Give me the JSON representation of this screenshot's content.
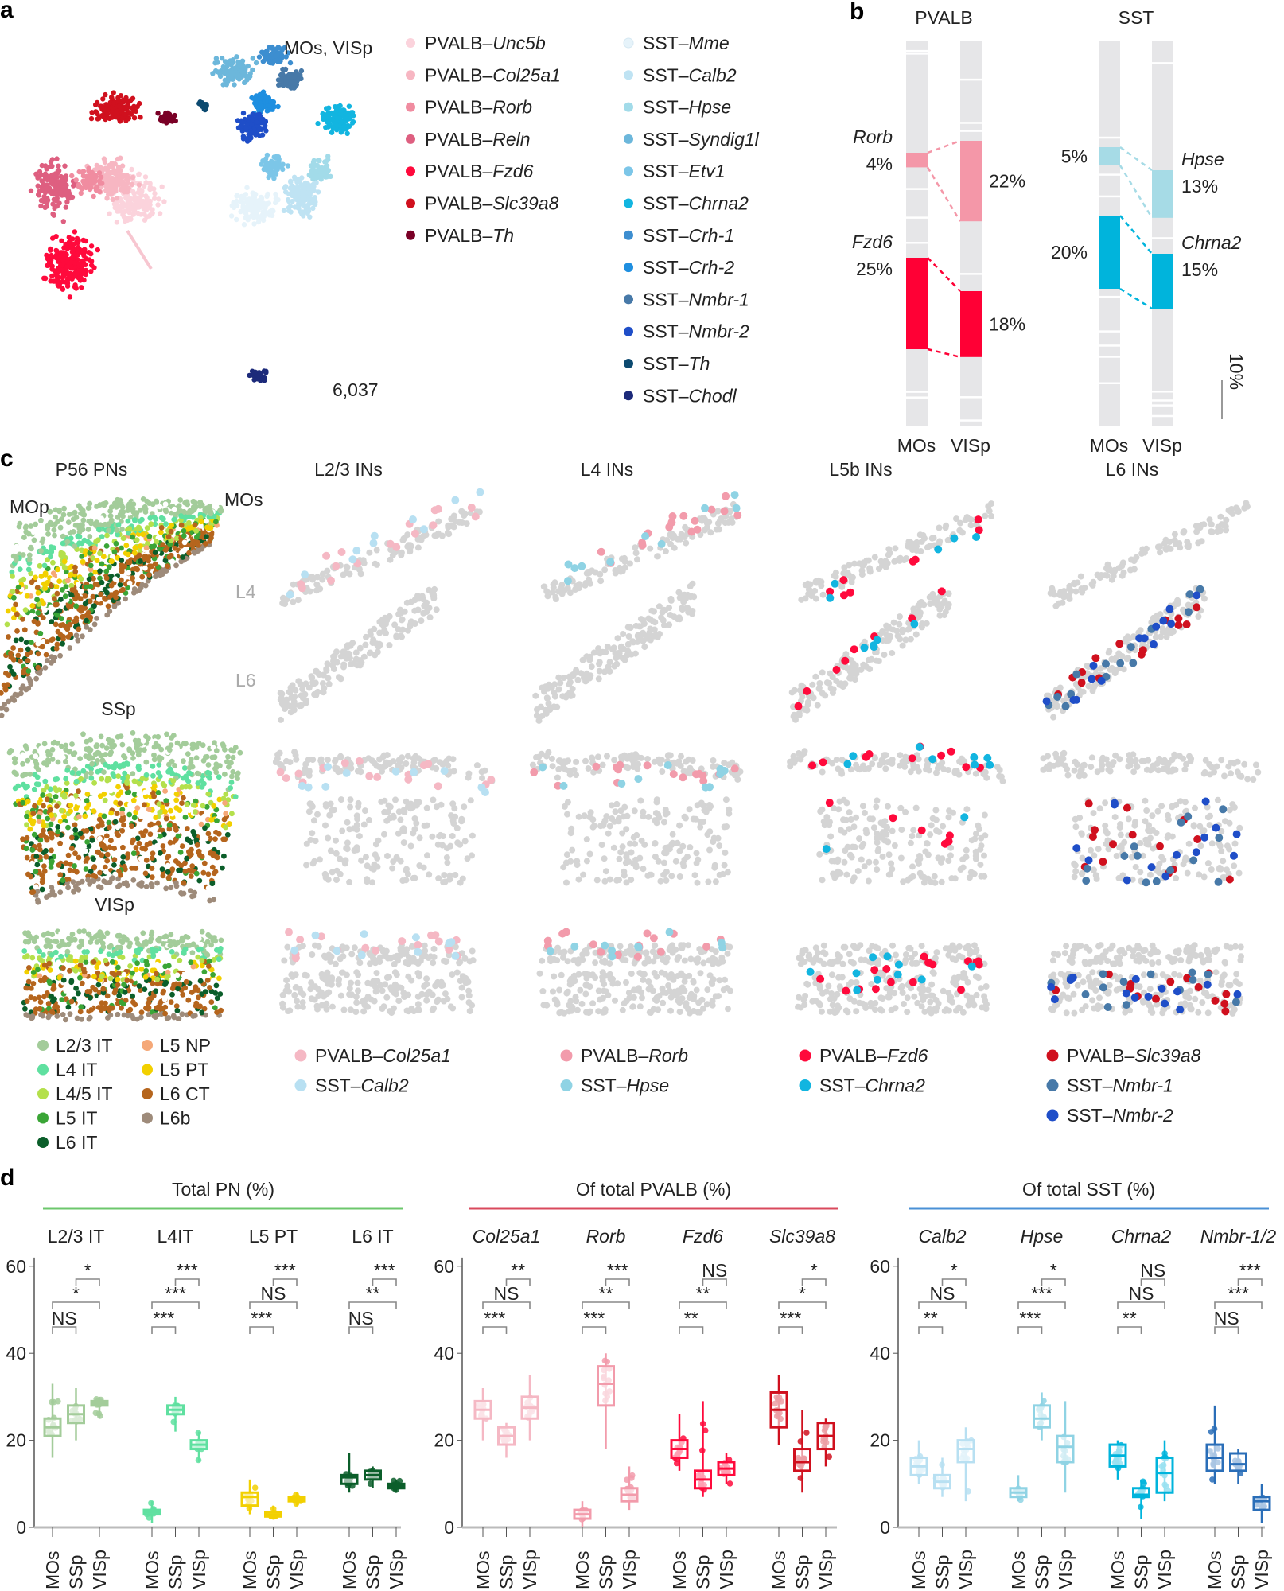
{
  "panel_labels": {
    "a": "a",
    "b": "b",
    "c": "c",
    "d": "d"
  },
  "panel_a": {
    "region_label": "MOs, VISp",
    "cell_count": "6,037",
    "pvalb_types": [
      {
        "prefix": "PVALB–",
        "name": "Unc5b",
        "color": "#fbd3dc"
      },
      {
        "prefix": "PVALB–",
        "name": "Col25a1",
        "color": "#f7b6c2"
      },
      {
        "prefix": "PVALB–",
        "name": "Rorb",
        "color": "#f08ca0"
      },
      {
        "prefix": "PVALB–",
        "name": "Reln",
        "color": "#de5f80"
      },
      {
        "prefix": "PVALB–",
        "name": "Fzd6",
        "color": "#ff0a3c"
      },
      {
        "prefix": "PVALB–",
        "name": "Slc39a8",
        "color": "#d0101e"
      },
      {
        "prefix": "PVALB–",
        "name": "Th",
        "color": "#7a0026"
      }
    ],
    "sst_types": [
      {
        "prefix": "SST–",
        "name": "Mme",
        "color": "#e6f3fa"
      },
      {
        "prefix": "SST–",
        "name": "Calb2",
        "color": "#bfe3f3"
      },
      {
        "prefix": "SST–",
        "name": "Hpse",
        "color": "#a2dbe9"
      },
      {
        "prefix": "SST–",
        "name": "Syndig1l",
        "color": "#6cb7db"
      },
      {
        "prefix": "SST–",
        "name": "Etv1",
        "color": "#7cc6e8"
      },
      {
        "prefix": "SST–",
        "name": "Chrna2",
        "color": "#12b5e0"
      },
      {
        "prefix": "SST–",
        "name": "Crh-1",
        "color": "#3d8ed0"
      },
      {
        "prefix": "SST–",
        "name": "Crh-2",
        "color": "#1f8fe0"
      },
      {
        "prefix": "SST–",
        "name": "Nmbr-1",
        "color": "#4779a8"
      },
      {
        "prefix": "SST–",
        "name": "Nmbr-2",
        "color": "#1f4ec8"
      },
      {
        "prefix": "SST–",
        "name": "Th",
        "color": "#0c4a70"
      },
      {
        "prefix": "SST–",
        "name": "Chodl",
        "color": "#1c2a7a"
      }
    ]
  },
  "panel_c": {
    "column_titles": [
      "P56 PNs",
      "L2/3 INs",
      "L4 INs",
      "L5b INs",
      "L6 INs"
    ],
    "region_labels": {
      "mop": "MOp",
      "mos": "MOs",
      "ssp": "SSp",
      "visp": "VISp"
    },
    "layer_markers": {
      "l4": "L4",
      "l6": "L6"
    },
    "pn_legend": [
      {
        "name": "L2/3 IT",
        "color": "#a3cc9a"
      },
      {
        "name": "L4 IT",
        "color": "#5fe0a0"
      },
      {
        "name": "L4/5 IT",
        "color": "#b4e04c"
      },
      {
        "name": "L5 IT",
        "color": "#3aa536"
      },
      {
        "name": "L6 IT",
        "color": "#0b5e2a"
      },
      {
        "name": "L5 NP",
        "color": "#f5a878"
      },
      {
        "name": "L5 PT",
        "color": "#f2d000"
      },
      {
        "name": "L6 CT",
        "color": "#b5651d"
      },
      {
        "name": "L6b",
        "color": "#9e8b7a"
      }
    ],
    "in_legend": [
      [
        {
          "prefix": "PVALB–",
          "name": "Col25a1",
          "color": "#f5b8c4"
        },
        {
          "prefix": "SST–",
          "name": "Calb2",
          "color": "#b8e0f2"
        }
      ],
      [
        {
          "prefix": "PVALB–",
          "name": "Rorb",
          "color": "#f29bab"
        },
        {
          "prefix": "SST–",
          "name": "Hpse",
          "color": "#8fd3e4"
        }
      ],
      [
        {
          "prefix": "PVALB–",
          "name": "Fzd6",
          "color": "#ff0a3c"
        },
        {
          "prefix": "SST–",
          "name": "Chrna2",
          "color": "#12b5e0"
        }
      ],
      [
        {
          "prefix": "PVALB–",
          "name": "Slc39a8",
          "color": "#d0101e"
        },
        {
          "prefix": "SST–",
          "name": "Nmbr-1",
          "color": "#4779a8"
        },
        {
          "prefix": "SST–",
          "name": "Nmbr-2",
          "color": "#1f4ec8"
        }
      ]
    ]
  },
  "chart_data": [
    {
      "type": "bar",
      "panel": "b",
      "stacked": true,
      "categories": [
        "MOs",
        "VISp"
      ],
      "scale_bar": "10%",
      "groups": [
        {
          "title": "PVALB",
          "highlighted": [
            {
              "name": "Rorb",
              "values": [
                4,
                22
              ],
              "labels": [
                "4%",
                "22%"
              ],
              "color": "#f497a8"
            },
            {
              "name": "Fzd6",
              "values": [
                25,
                18
              ],
              "labels": [
                "25%",
                "18%"
              ],
              "color": "#ff0035"
            }
          ]
        },
        {
          "title": "SST",
          "highlighted": [
            {
              "name": "Hpse",
              "values": [
                5,
                13
              ],
              "labels": [
                "5%",
                "13%"
              ],
              "color": "#a6dbe6"
            },
            {
              "name": "Chrna2",
              "values": [
                20,
                15
              ],
              "labels": [
                "20%",
                "15%"
              ],
              "color": "#00b4dc"
            }
          ]
        }
      ]
    },
    {
      "type": "box",
      "panel": "d",
      "ylim": [
        0,
        60
      ],
      "yticks": [
        "0",
        "20",
        "40",
        "60"
      ],
      "categories": [
        "MOs",
        "SSp",
        "VISp"
      ],
      "panels": [
        {
          "title": "Total PN (%)",
          "line_color": "#6cc76c",
          "italic": false,
          "groups": [
            {
              "name": "L2/3 IT",
              "color": "#a3cc9a",
              "boxes": [
                {
                  "median": 23,
                  "q1": 21,
                  "q3": 25,
                  "min": 16,
                  "max": 33
                },
                {
                  "median": 26,
                  "q1": 24,
                  "q3": 28,
                  "min": 20,
                  "max": 32
                },
                {
                  "median": 28.5,
                  "q1": 28,
                  "q3": 29,
                  "min": 25,
                  "max": 30
                }
              ],
              "significance": [
                "*",
                "*",
                "NS"
              ]
            },
            {
              "name": "L4IT",
              "color": "#5fe0a0",
              "boxes": [
                {
                  "median": 3.5,
                  "q1": 3,
                  "q3": 4,
                  "min": 1,
                  "max": 6
                },
                {
                  "median": 27,
                  "q1": 26,
                  "q3": 28,
                  "min": 22,
                  "max": 30
                },
                {
                  "median": 19,
                  "q1": 18,
                  "q3": 20,
                  "min": 15,
                  "max": 22
                }
              ],
              "significance": [
                "***",
                "***",
                "***"
              ]
            },
            {
              "name": "L5 PT",
              "color": "#f2d000",
              "boxes": [
                {
                  "median": 7,
                  "q1": 5,
                  "q3": 8,
                  "min": 3,
                  "max": 11
                },
                {
                  "median": 3,
                  "q1": 2.5,
                  "q3": 3.5,
                  "min": 2,
                  "max": 5
                },
                {
                  "median": 6.5,
                  "q1": 6,
                  "q3": 7,
                  "min": 5,
                  "max": 8
                }
              ],
              "significance": [
                "***",
                "NS",
                "***"
              ]
            },
            {
              "name": "L6 IT",
              "color": "#0b5e2a",
              "boxes": [
                {
                  "median": 11.5,
                  "q1": 10,
                  "q3": 12,
                  "min": 8,
                  "max": 17
                },
                {
                  "median": 12,
                  "q1": 11,
                  "q3": 13,
                  "min": 9,
                  "max": 14
                },
                {
                  "median": 9.5,
                  "q1": 9,
                  "q3": 10,
                  "min": 8,
                  "max": 11
                }
              ],
              "significance": [
                "***",
                "**",
                "NS"
              ]
            }
          ]
        },
        {
          "title": "Of total PVALB (%)",
          "line_color": "#d9495c",
          "italic": true,
          "groups": [
            {
              "name": "Col25a1",
              "color": "#f5b8c4",
              "boxes": [
                {
                  "median": 27,
                  "q1": 25,
                  "q3": 29,
                  "min": 20,
                  "max": 32
                },
                {
                  "median": 21,
                  "q1": 19,
                  "q3": 23,
                  "min": 16,
                  "max": 24
                },
                {
                  "median": 27.5,
                  "q1": 25,
                  "q3": 30,
                  "min": 20,
                  "max": 35
                }
              ],
              "significance": [
                "**",
                "NS",
                "***"
              ]
            },
            {
              "name": "Rorb",
              "color": "#f29bab",
              "boxes": [
                {
                  "median": 3,
                  "q1": 2,
                  "q3": 4,
                  "min": 0,
                  "max": 6
                },
                {
                  "median": 33,
                  "q1": 28,
                  "q3": 37,
                  "min": 18,
                  "max": 40
                },
                {
                  "median": 7.5,
                  "q1": 6,
                  "q3": 9,
                  "min": 4,
                  "max": 14
                }
              ],
              "significance": [
                "***",
                "**",
                "***"
              ]
            },
            {
              "name": "Fzd6",
              "color": "#ff0a3c",
              "boxes": [
                {
                  "median": 18,
                  "q1": 16,
                  "q3": 20,
                  "min": 13,
                  "max": 26
                },
                {
                  "median": 11,
                  "q1": 9,
                  "q3": 13,
                  "min": 7,
                  "max": 29
                },
                {
                  "median": 13.5,
                  "q1": 12,
                  "q3": 15,
                  "min": 10,
                  "max": 17
                }
              ],
              "significance": [
                "NS",
                "**",
                "**"
              ]
            },
            {
              "name": "Slc39a8",
              "color": "#d0101e",
              "boxes": [
                {
                  "median": 27,
                  "q1": 23,
                  "q3": 31,
                  "min": 19,
                  "max": 35
                },
                {
                  "median": 15,
                  "q1": 13,
                  "q3": 18,
                  "min": 8,
                  "max": 27
                },
                {
                  "median": 21,
                  "q1": 18,
                  "q3": 24,
                  "min": 14,
                  "max": 25
                }
              ],
              "significance": [
                "*",
                "*",
                "***"
              ]
            }
          ]
        },
        {
          "title": "Of total SST (%)",
          "line_color": "#4a90d6",
          "italic": true,
          "groups": [
            {
              "name": "Calb2",
              "color": "#b8e0f2",
              "boxes": [
                {
                  "median": 14,
                  "q1": 12,
                  "q3": 16,
                  "min": 10,
                  "max": 20
                },
                {
                  "median": 10.5,
                  "q1": 9,
                  "q3": 12,
                  "min": 7,
                  "max": 16
                },
                {
                  "median": 18,
                  "q1": 15,
                  "q3": 20,
                  "min": 6,
                  "max": 23
                }
              ],
              "significance": [
                "*",
                "NS",
                "**"
              ]
            },
            {
              "name": "Hpse",
              "color": "#8fd3e4",
              "boxes": [
                {
                  "median": 8,
                  "q1": 7,
                  "q3": 9,
                  "min": 6,
                  "max": 12
                },
                {
                  "median": 25,
                  "q1": 23,
                  "q3": 28,
                  "min": 20,
                  "max": 31
                },
                {
                  "median": 18.5,
                  "q1": 15,
                  "q3": 21,
                  "min": 8,
                  "max": 29
                }
              ],
              "significance": [
                "*",
                "***",
                "***"
              ]
            },
            {
              "name": "Chrna2",
              "color": "#00b4dc",
              "boxes": [
                {
                  "median": 16.5,
                  "q1": 14,
                  "q3": 19,
                  "min": 11,
                  "max": 20
                },
                {
                  "median": 7.5,
                  "q1": 7,
                  "q3": 9,
                  "min": 2,
                  "max": 11
                },
                {
                  "median": 12.5,
                  "q1": 8,
                  "q3": 16,
                  "min": 6,
                  "max": 20
                }
              ],
              "significance": [
                "NS",
                "NS",
                "**"
              ]
            },
            {
              "name": "Nmbr-1/2",
              "color": "#2a6eb8",
              "boxes": [
                {
                  "median": 16,
                  "q1": 13,
                  "q3": 19,
                  "min": 10,
                  "max": 28
                },
                {
                  "median": 14.5,
                  "q1": 13,
                  "q3": 17,
                  "min": 10,
                  "max": 18
                },
                {
                  "median": 6,
                  "q1": 4,
                  "q3": 7,
                  "min": 1,
                  "max": 10
                }
              ],
              "significance": [
                "***",
                "***",
                "NS"
              ]
            }
          ]
        }
      ]
    }
  ]
}
